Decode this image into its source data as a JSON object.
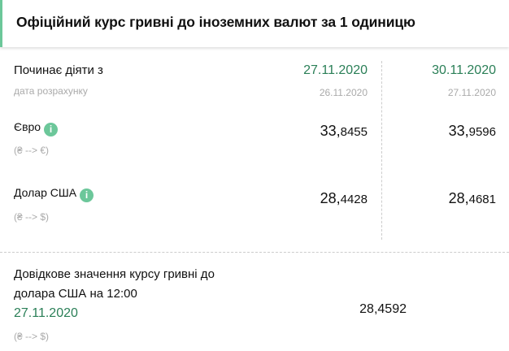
{
  "header": {
    "title": "Офіційний курс гривні до іноземних валют за 1 одиницю"
  },
  "table": {
    "start_label": "Починає діяти з",
    "calc_label": "дата розрахунку",
    "columns": [
      {
        "effective_date": "27.11.2020",
        "calc_date": "26.11.2020"
      },
      {
        "effective_date": "30.11.2020",
        "calc_date": "27.11.2020"
      }
    ],
    "rows": [
      {
        "currency": "Євро",
        "direction": "(₴ --> €)",
        "values": [
          {
            "int": "33,",
            "dec": "8455"
          },
          {
            "int": "33,",
            "dec": "9596"
          }
        ]
      },
      {
        "currency": "Долар США",
        "direction": "(₴ --> $)",
        "values": [
          {
            "int": "28,",
            "dec": "4428"
          },
          {
            "int": "28,",
            "dec": "4681"
          }
        ]
      }
    ]
  },
  "reference": {
    "line1": "Довідкове значення курсу гривні до",
    "line2": "долара США на 12:00",
    "date": "27.11.2020",
    "direction": "(₴ --> $)",
    "value": "28,4592"
  },
  "colors": {
    "accent": "#6cc79a",
    "date_green": "#2a7f57"
  },
  "icons": {
    "info": "info-icon"
  }
}
